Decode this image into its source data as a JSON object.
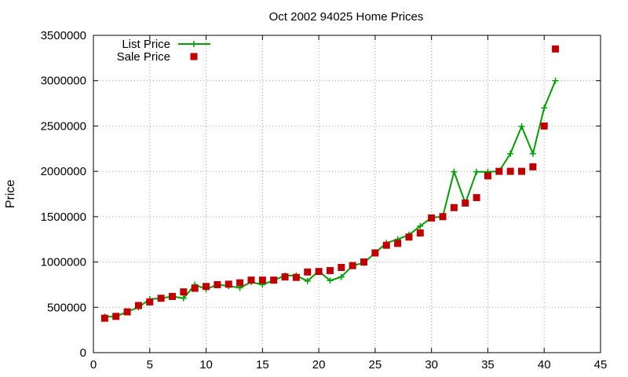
{
  "chart_data": {
    "type": "line",
    "title": "Oct 2002 94025 Home Prices",
    "ylabel": "Price",
    "xlabel": "",
    "xlim": [
      0,
      45
    ],
    "ylim": [
      0,
      3500000
    ],
    "xticks": [
      0,
      5,
      10,
      15,
      20,
      25,
      30,
      35,
      40,
      45
    ],
    "yticks": [
      0,
      500000,
      1000000,
      1500000,
      2000000,
      2500000,
      3000000,
      3500000
    ],
    "grid": true,
    "legend_position": "top-left",
    "series": [
      {
        "name": "List Price",
        "style": "line-plus",
        "color": "#00a000",
        "points": [
          [
            1,
            395000
          ],
          [
            2,
            400000
          ],
          [
            3,
            450000
          ],
          [
            4,
            500000
          ],
          [
            5,
            590000
          ],
          [
            6,
            600000
          ],
          [
            7,
            620000
          ],
          [
            8,
            600000
          ],
          [
            9,
            750000
          ],
          [
            10,
            700000
          ],
          [
            11,
            750000
          ],
          [
            12,
            735000
          ],
          [
            13,
            715000
          ],
          [
            14,
            780000
          ],
          [
            15,
            750000
          ],
          [
            16,
            799000
          ],
          [
            17,
            850000
          ],
          [
            18,
            850000
          ],
          [
            19,
            790000
          ],
          [
            20,
            900000
          ],
          [
            21,
            795000
          ],
          [
            22,
            835000
          ],
          [
            23,
            960000
          ],
          [
            24,
            990000
          ],
          [
            25,
            1100000
          ],
          [
            26,
            1210000
          ],
          [
            27,
            1250000
          ],
          [
            28,
            1300000
          ],
          [
            29,
            1395000
          ],
          [
            30,
            1490000
          ],
          [
            31,
            1500000
          ],
          [
            32,
            1995000
          ],
          [
            33,
            1650000
          ],
          [
            34,
            1995000
          ],
          [
            35,
            1995000
          ],
          [
            36,
            2000000
          ],
          [
            37,
            2195000
          ],
          [
            38,
            2495000
          ],
          [
            39,
            2195000
          ],
          [
            40,
            2700000
          ],
          [
            41,
            3000000
          ]
        ]
      },
      {
        "name": "Sale Price",
        "style": "square",
        "color": "#c00000",
        "points": [
          [
            1,
            380000
          ],
          [
            2,
            400000
          ],
          [
            3,
            450000
          ],
          [
            4,
            520000
          ],
          [
            5,
            560000
          ],
          [
            6,
            600000
          ],
          [
            7,
            620000
          ],
          [
            8,
            670000
          ],
          [
            9,
            710000
          ],
          [
            10,
            730000
          ],
          [
            11,
            750000
          ],
          [
            12,
            755000
          ],
          [
            13,
            770000
          ],
          [
            14,
            800000
          ],
          [
            15,
            800000
          ],
          [
            16,
            800000
          ],
          [
            17,
            835000
          ],
          [
            18,
            830000
          ],
          [
            19,
            890000
          ],
          [
            20,
            895000
          ],
          [
            21,
            905000
          ],
          [
            22,
            940000
          ],
          [
            23,
            960000
          ],
          [
            24,
            1000000
          ],
          [
            25,
            1100000
          ],
          [
            26,
            1185000
          ],
          [
            27,
            1205000
          ],
          [
            28,
            1275000
          ],
          [
            29,
            1320000
          ],
          [
            30,
            1485000
          ],
          [
            31,
            1500000
          ],
          [
            32,
            1600000
          ],
          [
            33,
            1650000
          ],
          [
            34,
            1710000
          ],
          [
            35,
            1950000
          ],
          [
            36,
            2000000
          ],
          [
            37,
            2000000
          ],
          [
            38,
            2000000
          ],
          [
            39,
            2050000
          ],
          [
            40,
            2500000
          ],
          [
            41,
            3350000
          ]
        ]
      }
    ]
  }
}
